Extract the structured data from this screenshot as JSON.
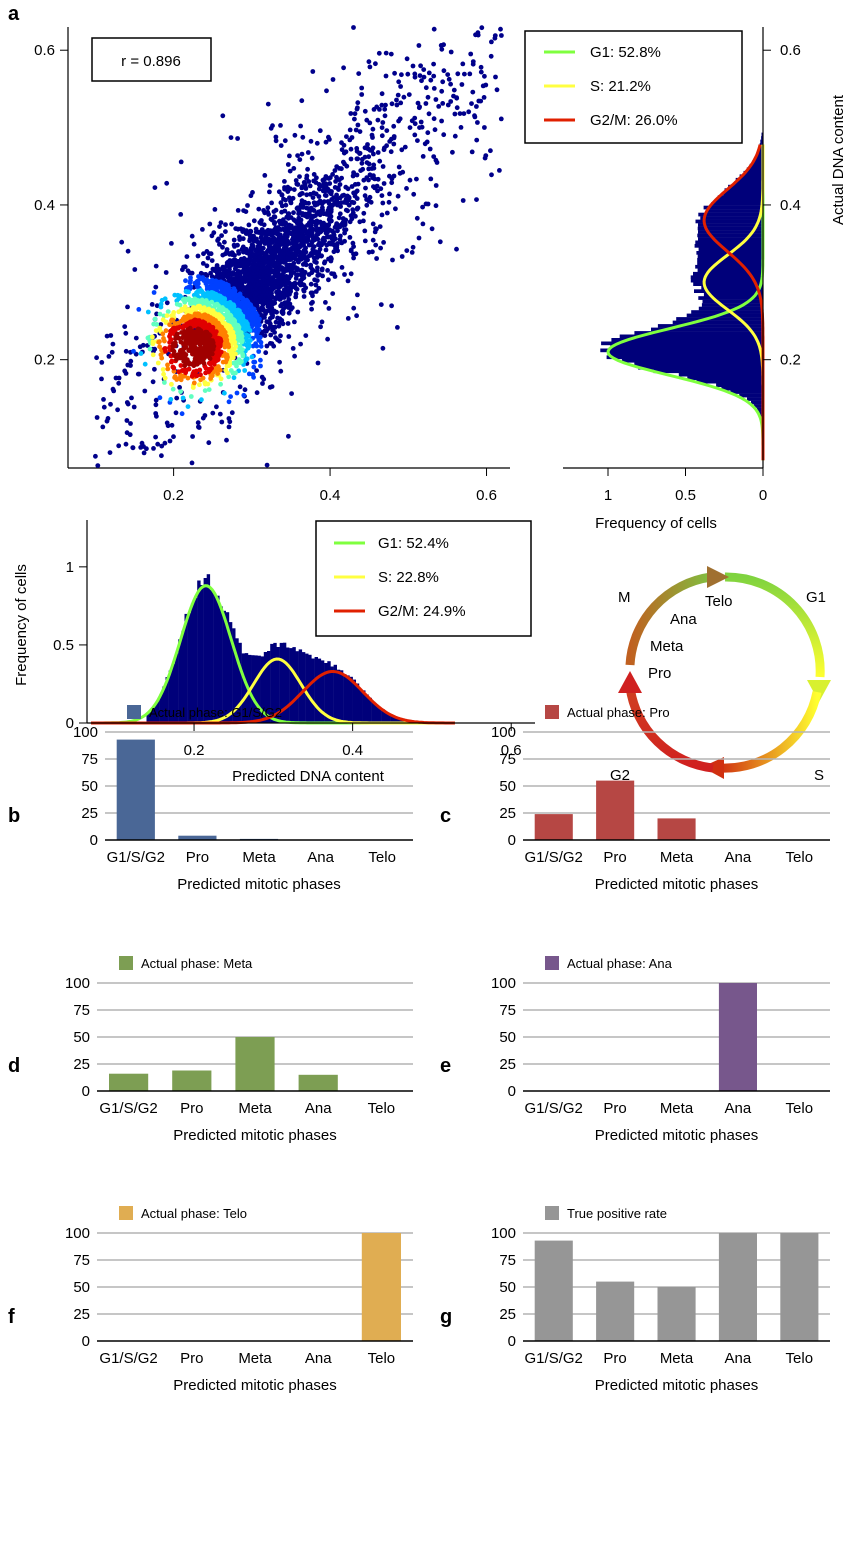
{
  "panel_letters": [
    "a",
    "b",
    "c",
    "d",
    "e",
    "f",
    "g"
  ],
  "cell_cycle_diagram": {
    "labels": [
      "M",
      "G1",
      "S",
      "G2",
      "Telo",
      "Ana",
      "Meta",
      "Pro"
    ]
  },
  "chart_data": [
    {
      "panel": "a",
      "type": "scatter",
      "annotation": "r = 0.896",
      "x_ticks": [
        "0.2",
        "0.4",
        "0.6"
      ],
      "y_ticks": [
        "0.2",
        "0.4",
        "0.6"
      ],
      "xlim": [
        0.065,
        0.63
      ],
      "ylim": [
        0.06,
        0.63
      ],
      "density_center": [
        0.225,
        0.215
      ],
      "colormap": [
        "#00008b",
        "#0040ff",
        "#00c0ff",
        "#60ffc0",
        "#ffff40",
        "#ff8000",
        "#e00000",
        "#a00000"
      ]
    },
    {
      "panel": "a-right",
      "type": "area",
      "orientation": "horizontal",
      "ylabel": "Actual DNA content",
      "xlabel": "Frequency of cells",
      "x_ticks": [
        "1",
        "0.5",
        "0"
      ],
      "y_ticks": [
        "0.2",
        "0.4",
        "0.6"
      ],
      "xlim": [
        0,
        1.18
      ],
      "ylim": [
        0.06,
        0.63
      ],
      "histogram_color": "#00007a",
      "series": [
        {
          "name": "G1: 52.8%",
          "color": "#7fff3f",
          "mean": 0.21,
          "sd": 0.03,
          "peak": 1.0
        },
        {
          "name": "S: 21.2%",
          "color": "#ffff40",
          "mean": 0.3,
          "sd": 0.035,
          "peak": 0.38
        },
        {
          "name": "G2/M: 26.0%",
          "color": "#e02000",
          "mean": 0.38,
          "sd": 0.04,
          "peak": 0.38
        }
      ]
    },
    {
      "panel": "a-bottom",
      "type": "area",
      "xlabel": "Predicted DNA content",
      "ylabel": "Frequency of cells",
      "x_ticks": [
        "0.2",
        "0.4",
        "0.6"
      ],
      "y_ticks": [
        "0",
        "0.5",
        "1"
      ],
      "xlim": [
        0.065,
        0.63
      ],
      "ylim": [
        0,
        1.3
      ],
      "histogram_color": "#00007a",
      "series": [
        {
          "name": "G1: 52.4%",
          "color": "#7fff3f",
          "mean": 0.215,
          "sd": 0.032,
          "peak": 0.88
        },
        {
          "name": "S: 22.8%",
          "color": "#ffff40",
          "mean": 0.305,
          "sd": 0.03,
          "peak": 0.41
        },
        {
          "name": "G2/M: 24.9%",
          "color": "#e02000",
          "mean": 0.375,
          "sd": 0.038,
          "peak": 0.33
        }
      ]
    },
    {
      "panel": "b",
      "type": "bar",
      "legend": "Actual phase: G1/S/G2",
      "color": "#4a6796",
      "categories": [
        "G1/S/G2",
        "Pro",
        "Meta",
        "Ana",
        "Telo"
      ],
      "values": [
        93,
        4,
        1,
        0.5,
        0.5
      ],
      "y_ticks": [
        "0",
        "25",
        "50",
        "75",
        "100"
      ],
      "ylim": [
        0,
        100
      ],
      "xlabel": "Predicted mitotic phases"
    },
    {
      "panel": "c",
      "type": "bar",
      "legend": "Actual phase: Pro",
      "color": "#b64744",
      "categories": [
        "G1/S/G2",
        "Pro",
        "Meta",
        "Ana",
        "Telo"
      ],
      "values": [
        24,
        55,
        20,
        0.5,
        0.5
      ],
      "y_ticks": [
        "0",
        "25",
        "50",
        "75",
        "100"
      ],
      "ylim": [
        0,
        100
      ],
      "xlabel": "Predicted mitotic phases"
    },
    {
      "panel": "d",
      "type": "bar",
      "legend": "Actual phase: Meta",
      "color": "#7d9e53",
      "categories": [
        "G1/S/G2",
        "Pro",
        "Meta",
        "Ana",
        "Telo"
      ],
      "values": [
        16,
        19,
        50,
        15,
        0
      ],
      "y_ticks": [
        "0",
        "25",
        "50",
        "75",
        "100"
      ],
      "ylim": [
        0,
        100
      ],
      "xlabel": "Predicted mitotic phases"
    },
    {
      "panel": "e",
      "type": "bar",
      "legend": "Actual phase: Ana",
      "color": "#77578c",
      "categories": [
        "G1/S/G2",
        "Pro",
        "Meta",
        "Ana",
        "Telo"
      ],
      "values": [
        0,
        0,
        0,
        100,
        0
      ],
      "y_ticks": [
        "0",
        "25",
        "50",
        "75",
        "100"
      ],
      "ylim": [
        0,
        100
      ],
      "xlabel": "Predicted mitotic phases"
    },
    {
      "panel": "f",
      "type": "bar",
      "legend": "Actual phase: Telo",
      "color": "#e0ad52",
      "categories": [
        "G1/S/G2",
        "Pro",
        "Meta",
        "Ana",
        "Telo"
      ],
      "values": [
        0,
        0,
        0,
        0,
        100
      ],
      "y_ticks": [
        "0",
        "25",
        "50",
        "75",
        "100"
      ],
      "ylim": [
        0,
        100
      ],
      "xlabel": "Predicted mitotic phases"
    },
    {
      "panel": "g",
      "type": "bar",
      "legend": "True positive rate",
      "color": "#969696",
      "categories": [
        "G1/S/G2",
        "Pro",
        "Meta",
        "Ana",
        "Telo"
      ],
      "values": [
        93,
        55,
        50,
        100,
        100
      ],
      "y_ticks": [
        "0",
        "25",
        "50",
        "75",
        "100"
      ],
      "ylim": [
        0,
        100
      ],
      "xlabel": "Predicted mitotic phases"
    }
  ]
}
